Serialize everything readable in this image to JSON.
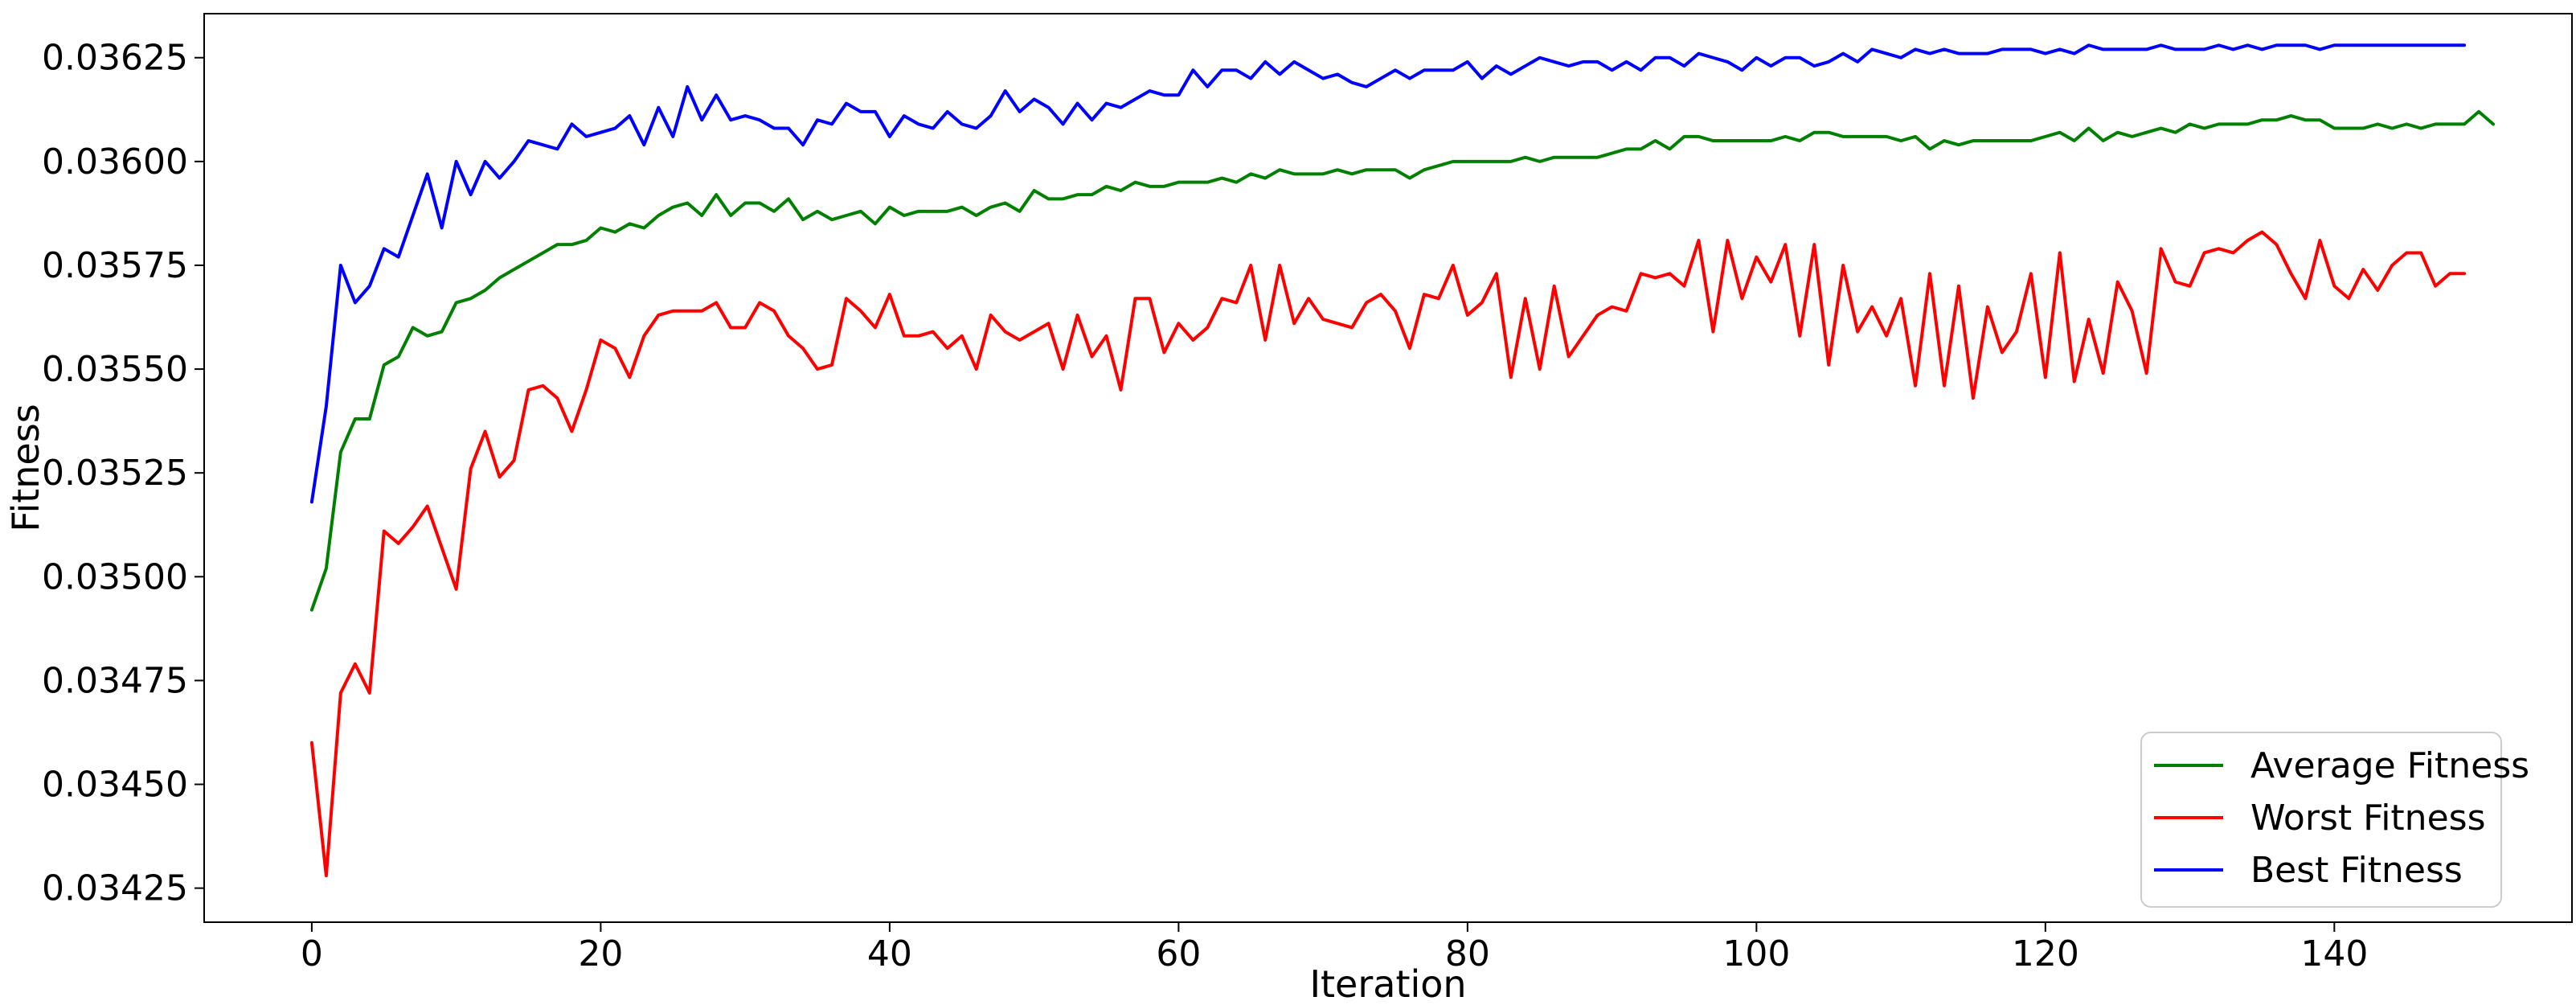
{
  "chart_data": {
    "type": "line",
    "title": "",
    "xlabel": "Iteration",
    "ylabel": "Fitness",
    "xlim": [
      -7.45,
      156.45
    ],
    "ylim": [
      0.034168,
      0.036356
    ],
    "xticks": [
      0,
      20,
      40,
      60,
      80,
      100,
      120,
      140
    ],
    "xtick_labels": [
      "0",
      "20",
      "40",
      "60",
      "80",
      "100",
      "120",
      "140"
    ],
    "yticks": [
      0.03425,
      0.0345,
      0.03475,
      0.035,
      0.03525,
      0.0355,
      0.03575,
      0.036,
      0.03625
    ],
    "ytick_labels": [
      "0.03425",
      "0.03450",
      "0.03475",
      "0.03500",
      "0.03525",
      "0.03550",
      "0.03575",
      "0.03600",
      "0.03625"
    ],
    "grid": false,
    "legend_position": "lower-right",
    "series": [
      {
        "name": "Average Fitness",
        "color": "#008000",
        "values": [
          0.03492,
          0.03502,
          0.0353,
          0.03538,
          0.03538,
          0.03551,
          0.03553,
          0.0356,
          0.03558,
          0.03559,
          0.03566,
          0.03567,
          0.03569,
          0.03572,
          0.03574,
          0.03576,
          0.03578,
          0.0358,
          0.0358,
          0.03581,
          0.03584,
          0.03583,
          0.03585,
          0.03584,
          0.03587,
          0.03589,
          0.0359,
          0.03587,
          0.03592,
          0.03587,
          0.0359,
          0.0359,
          0.03588,
          0.03591,
          0.03586,
          0.03588,
          0.03586,
          0.03587,
          0.03588,
          0.03585,
          0.03589,
          0.03587,
          0.03588,
          0.03588,
          0.03588,
          0.03589,
          0.03587,
          0.03589,
          0.0359,
          0.03588,
          0.03593,
          0.03591,
          0.03591,
          0.03592,
          0.03592,
          0.03594,
          0.03593,
          0.03595,
          0.03594,
          0.03594,
          0.03595,
          0.03595,
          0.03595,
          0.03596,
          0.03595,
          0.03597,
          0.03596,
          0.03598,
          0.03597,
          0.03597,
          0.03597,
          0.03598,
          0.03597,
          0.03598,
          0.03598,
          0.03598,
          0.03596,
          0.03598,
          0.03599,
          0.036,
          0.036,
          0.036,
          0.036,
          0.036,
          0.03601,
          0.036,
          0.03601,
          0.03601,
          0.03601,
          0.03601,
          0.03602,
          0.03603,
          0.03603,
          0.03605,
          0.03603,
          0.03606,
          0.03606,
          0.03605,
          0.03605,
          0.03605,
          0.03605,
          0.03605,
          0.03606,
          0.03605,
          0.03607,
          0.03607,
          0.03606,
          0.03606,
          0.03606,
          0.03606,
          0.03605,
          0.03606,
          0.03603,
          0.03605,
          0.03604,
          0.03605,
          0.03605,
          0.03605,
          0.03605,
          0.03605,
          0.03606,
          0.03607,
          0.03605,
          0.03608,
          0.03605,
          0.03607,
          0.03606,
          0.03607,
          0.03608,
          0.03607,
          0.03609,
          0.03608,
          0.03609,
          0.03609,
          0.03609,
          0.0361,
          0.0361,
          0.03611,
          0.0361,
          0.0361,
          0.03608,
          0.03608,
          0.03608,
          0.03609,
          0.03608,
          0.03609,
          0.03608,
          0.03609,
          0.03609,
          0.03609,
          0.03612,
          0.03609
        ]
      },
      {
        "name": "Worst Fitness",
        "color": "#ff0000",
        "values": [
          0.0346,
          0.03428,
          0.03472,
          0.03479,
          0.03472,
          0.03511,
          0.03508,
          0.03512,
          0.03517,
          0.03507,
          0.03497,
          0.03526,
          0.03535,
          0.03524,
          0.03528,
          0.03545,
          0.03546,
          0.03543,
          0.03535,
          0.03545,
          0.03557,
          0.03555,
          0.03548,
          0.03558,
          0.03563,
          0.03564,
          0.03564,
          0.03564,
          0.03566,
          0.0356,
          0.0356,
          0.03566,
          0.03564,
          0.03558,
          0.03555,
          0.0355,
          0.03551,
          0.03567,
          0.03564,
          0.0356,
          0.03568,
          0.03558,
          0.03558,
          0.03559,
          0.03555,
          0.03558,
          0.0355,
          0.03563,
          0.03559,
          0.03557,
          0.03559,
          0.03561,
          0.0355,
          0.03563,
          0.03553,
          0.03558,
          0.03545,
          0.03567,
          0.03567,
          0.03554,
          0.03561,
          0.03557,
          0.0356,
          0.03567,
          0.03566,
          0.03575,
          0.03557,
          0.03575,
          0.03561,
          0.03567,
          0.03562,
          0.03561,
          0.0356,
          0.03566,
          0.03568,
          0.03564,
          0.03555,
          0.03568,
          0.03567,
          0.03575,
          0.03563,
          0.03566,
          0.03573,
          0.03548,
          0.03567,
          0.0355,
          0.0357,
          0.03553,
          0.03558,
          0.03563,
          0.03565,
          0.03564,
          0.03573,
          0.03572,
          0.03573,
          0.0357,
          0.03581,
          0.03559,
          0.03581,
          0.03567,
          0.03577,
          0.03571,
          0.0358,
          0.03558,
          0.0358,
          0.03551,
          0.03575,
          0.03559,
          0.03565,
          0.03558,
          0.03567,
          0.03546,
          0.03573,
          0.03546,
          0.0357,
          0.03543,
          0.03565,
          0.03554,
          0.03559,
          0.03573,
          0.03548,
          0.03578,
          0.03547,
          0.03562,
          0.03549,
          0.03571,
          0.03564,
          0.03549,
          0.03579,
          0.03571,
          0.0357,
          0.03578,
          0.03579,
          0.03578,
          0.03581,
          0.03583,
          0.0358,
          0.03573,
          0.03567,
          0.03581,
          0.0357,
          0.03567,
          0.03574,
          0.03569,
          0.03575,
          0.03578,
          0.03578,
          0.0357,
          0.03573,
          0.03573
        ]
      },
      {
        "name": "Best Fitness",
        "color": "#0000ff",
        "values": [
          0.03518,
          0.03541,
          0.03575,
          0.03566,
          0.0357,
          0.03579,
          0.03577,
          0.03587,
          0.03597,
          0.03584,
          0.036,
          0.03592,
          0.036,
          0.03596,
          0.036,
          0.03605,
          0.03604,
          0.03603,
          0.03609,
          0.03606,
          0.03607,
          0.03608,
          0.03611,
          0.03604,
          0.03613,
          0.03606,
          0.03618,
          0.0361,
          0.03616,
          0.0361,
          0.03611,
          0.0361,
          0.03608,
          0.03608,
          0.03604,
          0.0361,
          0.03609,
          0.03614,
          0.03612,
          0.03612,
          0.03606,
          0.03611,
          0.03609,
          0.03608,
          0.03612,
          0.03609,
          0.03608,
          0.03611,
          0.03617,
          0.03612,
          0.03615,
          0.03613,
          0.03609,
          0.03614,
          0.0361,
          0.03614,
          0.03613,
          0.03615,
          0.03617,
          0.03616,
          0.03616,
          0.03622,
          0.03618,
          0.03622,
          0.03622,
          0.0362,
          0.03624,
          0.03621,
          0.03624,
          0.03622,
          0.0362,
          0.03621,
          0.03619,
          0.03618,
          0.0362,
          0.03622,
          0.0362,
          0.03622,
          0.03622,
          0.03622,
          0.03624,
          0.0362,
          0.03623,
          0.03621,
          0.03623,
          0.03625,
          0.03624,
          0.03623,
          0.03624,
          0.03624,
          0.03622,
          0.03624,
          0.03622,
          0.03625,
          0.03625,
          0.03623,
          0.03626,
          0.03625,
          0.03624,
          0.03622,
          0.03625,
          0.03623,
          0.03625,
          0.03625,
          0.03623,
          0.03624,
          0.03626,
          0.03624,
          0.03627,
          0.03626,
          0.03625,
          0.03627,
          0.03626,
          0.03627,
          0.03626,
          0.03626,
          0.03626,
          0.03627,
          0.03627,
          0.03627,
          0.03626,
          0.03627,
          0.03626,
          0.03628,
          0.03627,
          0.03627,
          0.03627,
          0.03627,
          0.03628,
          0.03627,
          0.03627,
          0.03627,
          0.03628,
          0.03627,
          0.03628,
          0.03627,
          0.03628,
          0.03628,
          0.03628,
          0.03627,
          0.03628,
          0.03628,
          0.03628,
          0.03628,
          0.03628,
          0.03628,
          0.03628,
          0.03628,
          0.03628,
          0.03628
        ]
      }
    ]
  }
}
